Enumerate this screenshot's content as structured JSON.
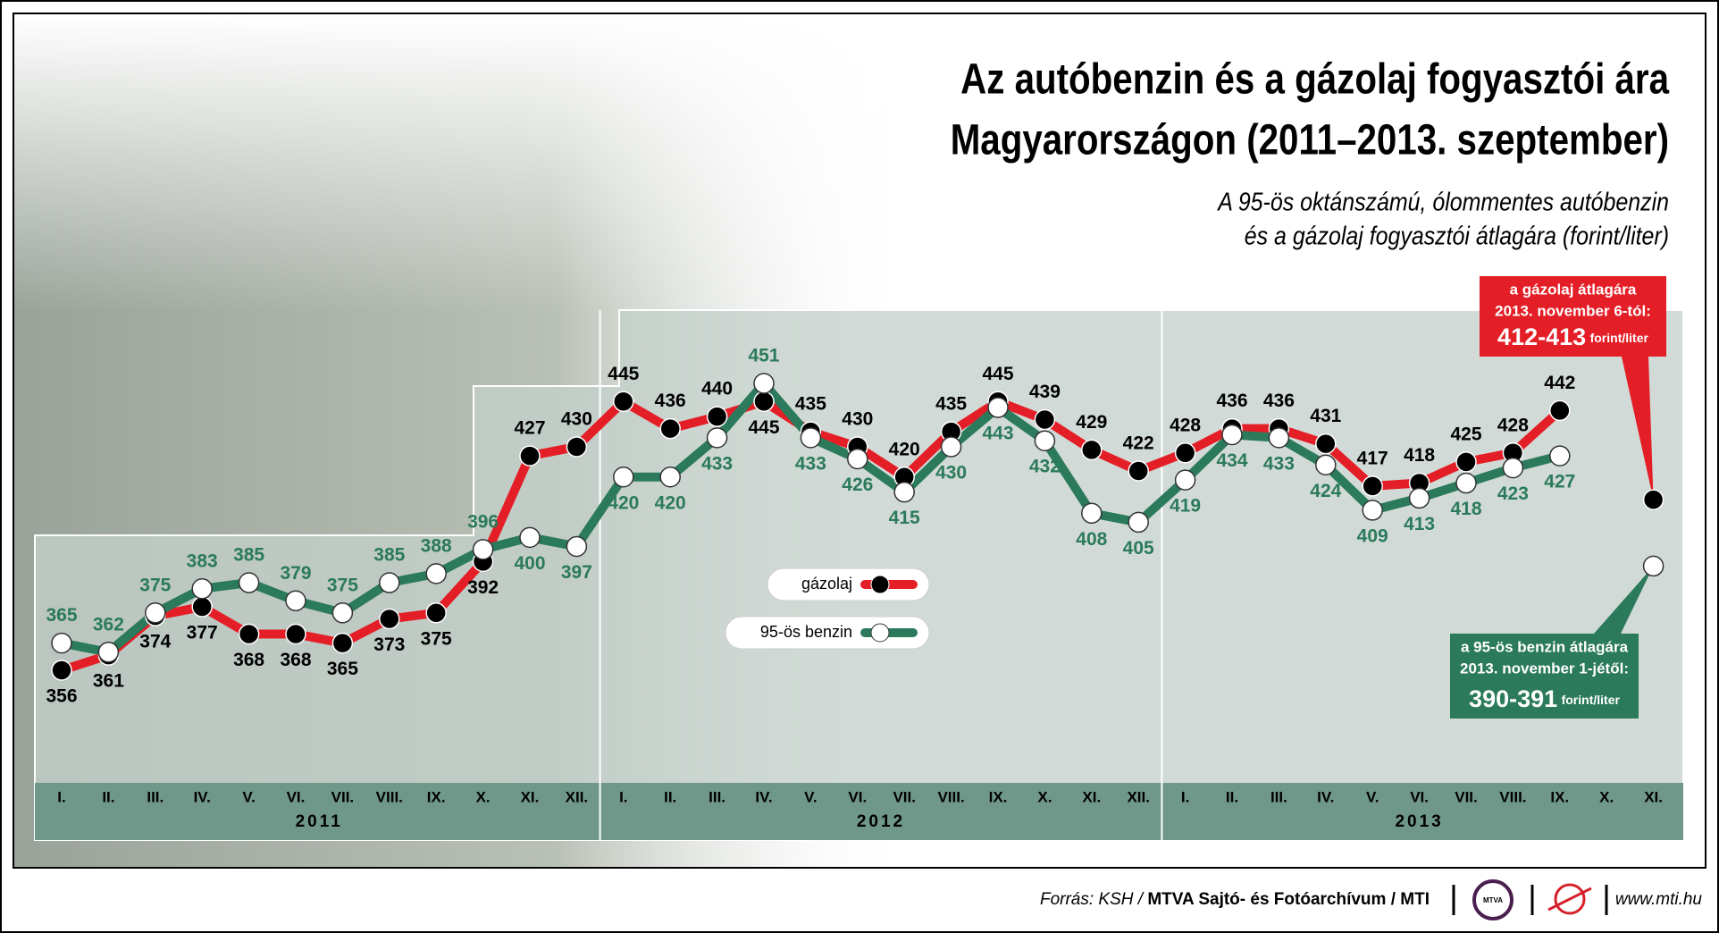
{
  "chart_data": {
    "type": "line",
    "title": [
      "Az autóbenzin és a gázolaj fogyasztói ára",
      "Magyarországon (2011–2013. szeptember)"
    ],
    "subtitle": [
      "A 95-ös oktánszámú, ólommentes autóbenzin",
      "és a gázolaj fogyasztói átlagára (forint/liter)"
    ],
    "categories": [
      "I.",
      "II.",
      "III.",
      "IV.",
      "V.",
      "VI.",
      "VII.",
      "VIII.",
      "IX.",
      "X.",
      "XI.",
      "XII.",
      "I.",
      "II.",
      "III.",
      "IV.",
      "V.",
      "VI.",
      "VII.",
      "VIII.",
      "IX.",
      "X.",
      "XI.",
      "XII.",
      "I.",
      "II.",
      "III.",
      "IV.",
      "V.",
      "VI.",
      "VII.",
      "VIII.",
      "IX.",
      "X.",
      "XI."
    ],
    "years": [
      "2011",
      "2012",
      "2013"
    ],
    "series": [
      {
        "name": "gázolaj",
        "color": "#e41e26",
        "values": [
          356,
          361,
          374,
          377,
          368,
          368,
          365,
          373,
          375,
          392,
          427,
          430,
          445,
          436,
          440,
          445,
          435,
          430,
          420,
          435,
          445,
          439,
          429,
          422,
          428,
          436,
          436,
          431,
          417,
          418,
          425,
          428,
          442,
          null,
          null
        ]
      },
      {
        "name": "95-ös benzin",
        "color": "#2b7a5c",
        "values": [
          365,
          362,
          375,
          383,
          385,
          379,
          375,
          385,
          388,
          396,
          400,
          397,
          420,
          420,
          433,
          451,
          433,
          426,
          415,
          430,
          443,
          432,
          408,
          405,
          419,
          434,
          433,
          424,
          409,
          413,
          418,
          423,
          427,
          null,
          null
        ]
      }
    ],
    "annotations": [
      {
        "lines": [
          "a gázolaj átlagára",
          "2013. november 6-tól:"
        ],
        "range": "412-413",
        "unit": "forint/liter",
        "value": 412.5,
        "color": "#e41e26"
      },
      {
        "lines": [
          "a 95-ös benzin átlagára",
          "2013. november 1-jétől:"
        ],
        "range": "390-391",
        "unit": "forint/liter",
        "value": 390.5,
        "color": "#2b7a5c"
      }
    ],
    "source": [
      "Forrás: KSH /",
      "MTVA Sajtó- és Fotóarchívum",
      "/ MTI"
    ],
    "logo": "MTVA",
    "url": "www.mti.hu"
  }
}
